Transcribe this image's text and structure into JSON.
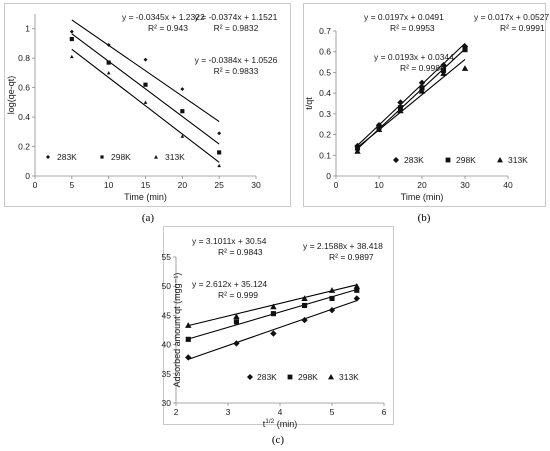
{
  "chart_data": [
    {
      "panel": "(a)",
      "type": "scatter",
      "xlabel": "Time (min)",
      "ylabel": "log(qe-qt)",
      "xlim": [
        0,
        30
      ],
      "ylim": [
        0,
        1.1
      ],
      "xticks": [
        "0",
        "5",
        "10",
        "15",
        "20",
        "25",
        "30"
      ],
      "yticks": [
        "0",
        "0.2",
        "0.4",
        "0.6",
        "0.8",
        "1"
      ],
      "grid": false,
      "legend": "bottom",
      "series": [
        {
          "name": "283K",
          "marker": "diamond",
          "x": [
            5,
            10,
            15,
            20,
            25
          ],
          "y": [
            0.98,
            0.89,
            0.79,
            0.59,
            0.29
          ],
          "fit": {
            "slope": -0.0345,
            "intercept": 1.2322
          }
        },
        {
          "name": "298K",
          "marker": "square",
          "x": [
            5,
            10,
            15,
            20,
            25
          ],
          "y": [
            0.93,
            0.77,
            0.62,
            0.44,
            0.16
          ],
          "fit": {
            "slope": -0.0374,
            "intercept": 1.1521
          }
        },
        {
          "name": "313K",
          "marker": "triangle",
          "x": [
            5,
            10,
            15,
            20,
            25
          ],
          "y": [
            0.81,
            0.7,
            0.5,
            0.27,
            0.07
          ],
          "fit": {
            "slope": -0.0384,
            "intercept": 1.0526
          }
        }
      ],
      "annotations": [
        {
          "eq": "y = -0.0345x + 1.2322",
          "r2": "R² = 0.943"
        },
        {
          "eq": "y = -0.0374x + 1.1521",
          "r2": "R² = 0.9832"
        },
        {
          "eq": "y = -0.0384x + 1.0526",
          "r2": "R² = 0.9833"
        }
      ]
    },
    {
      "panel": "(b)",
      "type": "scatter",
      "xlabel": "Time (min)",
      "ylabel": "t/qt",
      "xlim": [
        0,
        40
      ],
      "ylim": [
        0,
        0.7
      ],
      "xticks": [
        "0",
        "10",
        "20",
        "30",
        "40"
      ],
      "yticks": [
        "0",
        "0.1",
        "0.2",
        "0.3",
        "0.4",
        "0.5",
        "0.6",
        "0.7"
      ],
      "grid": false,
      "legend": "bottom",
      "series": [
        {
          "name": "283K",
          "marker": "diamond",
          "x": [
            5,
            10,
            15,
            20,
            25,
            30
          ],
          "y": [
            0.145,
            0.245,
            0.355,
            0.45,
            0.535,
            0.625
          ],
          "fit": {
            "slope": 0.0197,
            "intercept": 0.0491
          }
        },
        {
          "name": "298K",
          "marker": "square",
          "x": [
            5,
            10,
            15,
            20,
            25,
            30
          ],
          "y": [
            0.135,
            0.235,
            0.33,
            0.425,
            0.51,
            0.61
          ],
          "fit": {
            "slope": 0.017,
            "intercept": 0.0527
          }
        },
        {
          "name": "313K",
          "marker": "triangle",
          "x": [
            5,
            10,
            15,
            20,
            25,
            30
          ],
          "y": [
            0.12,
            0.225,
            0.315,
            0.41,
            0.495,
            0.52
          ],
          "fit": {
            "slope": 0.0193,
            "intercept": 0.0344
          }
        }
      ],
      "annotations": [
        {
          "eq": "y = 0.0197x + 0.0491",
          "r2": "R² = 0.9953"
        },
        {
          "eq": "y = 0.017x + 0.0527",
          "r2": "R² = 0.9991"
        },
        {
          "eq": "y = 0.0193x + 0.0344",
          "r2": "R² = 0.9984"
        }
      ]
    },
    {
      "panel": "(c)",
      "type": "scatter",
      "xlabel": "t",
      "xlabel_sup": "1/2",
      "xlabel_unit": " (min)",
      "ylabel": "Adsorbed amount qt (mgg⁻¹)",
      "xlim": [
        2,
        6
      ],
      "ylim": [
        30,
        55
      ],
      "xticks": [
        "2",
        "3",
        "4",
        "5",
        "6"
      ],
      "yticks": [
        "30",
        "35",
        "40",
        "45",
        "50",
        "55"
      ],
      "grid": false,
      "legend": "bottom",
      "series": [
        {
          "name": "283K",
          "marker": "diamond",
          "x": [
            2.236,
            3.162,
            3.873,
            4.472,
            5.0,
            5.477
          ],
          "y": [
            37.8,
            40.2,
            41.9,
            44.2,
            45.9,
            47.9
          ],
          "fit": {
            "slope": 3.1011,
            "intercept": 30.54
          }
        },
        {
          "name": "298K",
          "marker": "square",
          "x": [
            2.236,
            3.162,
            3.873,
            4.472,
            5.0,
            5.477
          ],
          "y": [
            40.9,
            43.9,
            45.3,
            46.7,
            47.9,
            49.3
          ],
          "fit": {
            "slope": 2.612,
            "intercept": 35.124
          }
        },
        {
          "name": "313K",
          "marker": "triangle",
          "x": [
            2.236,
            3.162,
            3.873,
            4.472,
            5.0,
            5.477
          ],
          "y": [
            43.3,
            44.8,
            46.5,
            47.9,
            49.3,
            50.0
          ],
          "fit": {
            "slope": 2.1588,
            "intercept": 38.418
          }
        }
      ],
      "annotations": [
        {
          "eq": "y = 3.1011x + 30.54",
          "r2": "R² = 0.9843"
        },
        {
          "eq": "y = 2.1588x + 38.418",
          "r2": "R² = 0.9897"
        },
        {
          "eq": "y = 2.612x + 35.124",
          "r2": "R² = 0.999"
        }
      ]
    }
  ]
}
